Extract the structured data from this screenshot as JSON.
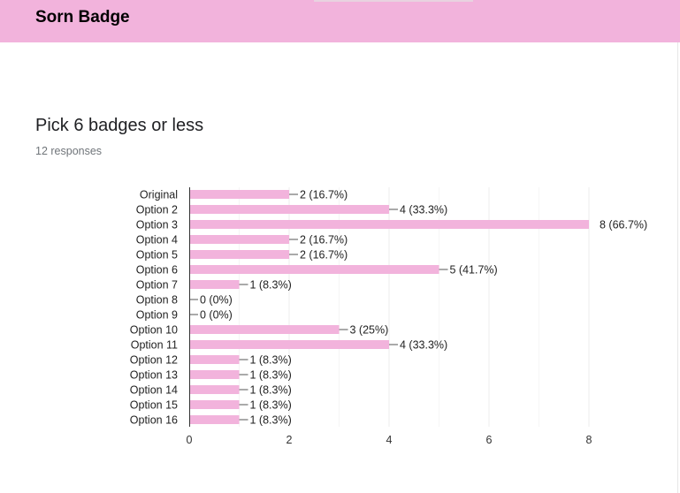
{
  "form": {
    "title": "Sorn Badge"
  },
  "question": {
    "title": "Pick 6 badges or less",
    "responses": "12 responses"
  },
  "colors": {
    "bar": "#f2b3dc",
    "header": "#f2b3dc",
    "grid": "#eeeeee",
    "axis": "#333333"
  },
  "chart_data": {
    "type": "bar",
    "orientation": "horizontal",
    "categories": [
      "Original",
      "Option 2",
      "Option 3",
      "Option 4",
      "Option 5",
      "Option 6",
      "Option 7",
      "Option 8",
      "Option 9",
      "Option 10",
      "Option 11",
      "Option 12",
      "Option 13",
      "Option 14",
      "Option 15",
      "Option 16"
    ],
    "values": [
      2,
      4,
      8,
      2,
      2,
      5,
      1,
      0,
      0,
      3,
      4,
      1,
      1,
      1,
      1,
      1
    ],
    "labels": [
      "2 (16.7%)",
      "4 (33.3%)",
      "8 (66.7%)",
      "2 (16.7%)",
      "2 (16.7%)",
      "5 (41.7%)",
      "1 (8.3%)",
      "0 (0%)",
      "0 (0%)",
      "3 (25%)",
      "4 (33.3%)",
      "1 (8.3%)",
      "1 (8.3%)",
      "1 (8.3%)",
      "1 (8.3%)",
      "1 (8.3%)"
    ],
    "xlim": [
      0,
      8
    ],
    "xticks": [
      "0",
      "2",
      "4",
      "6",
      "8"
    ],
    "grid": true,
    "legend": "none"
  }
}
